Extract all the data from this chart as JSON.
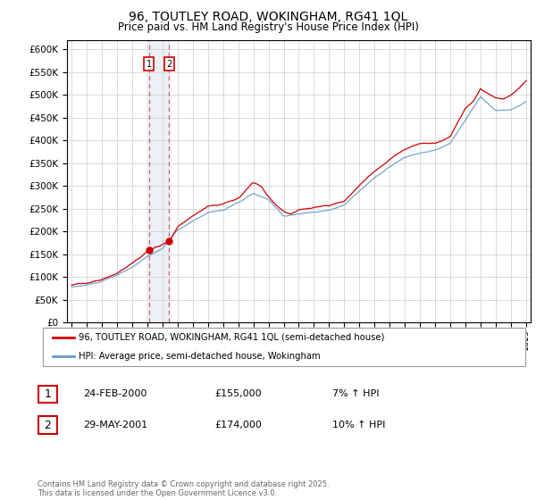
{
  "title": "96, TOUTLEY ROAD, WOKINGHAM, RG41 1QL",
  "subtitle": "Price paid vs. HM Land Registry's House Price Index (HPI)",
  "legend_line1": "96, TOUTLEY ROAD, WOKINGHAM, RG41 1QL (semi-detached house)",
  "legend_line2": "HPI: Average price, semi-detached house, Wokingham",
  "transaction1_date": "24-FEB-2000",
  "transaction1_price": "£155,000",
  "transaction1_hpi": "7% ↑ HPI",
  "transaction2_date": "29-MAY-2001",
  "transaction2_price": "£174,000",
  "transaction2_hpi": "10% ↑ HPI",
  "footer": "Contains HM Land Registry data © Crown copyright and database right 2025.\nThis data is licensed under the Open Government Licence v3.0.",
  "red_color": "#cc0000",
  "blue_color": "#6699cc",
  "vline_color": "#cc0000",
  "vline_fill_color": "#c8d8e8",
  "vline_fill_alpha": 0.35,
  "background_color": "#ffffff",
  "grid_color": "#cccccc",
  "ylim_min": 0,
  "ylim_max": 620000,
  "t1_year": 2000.125,
  "t2_year": 2001.417,
  "t1_price": 155000,
  "t2_price": 174000
}
